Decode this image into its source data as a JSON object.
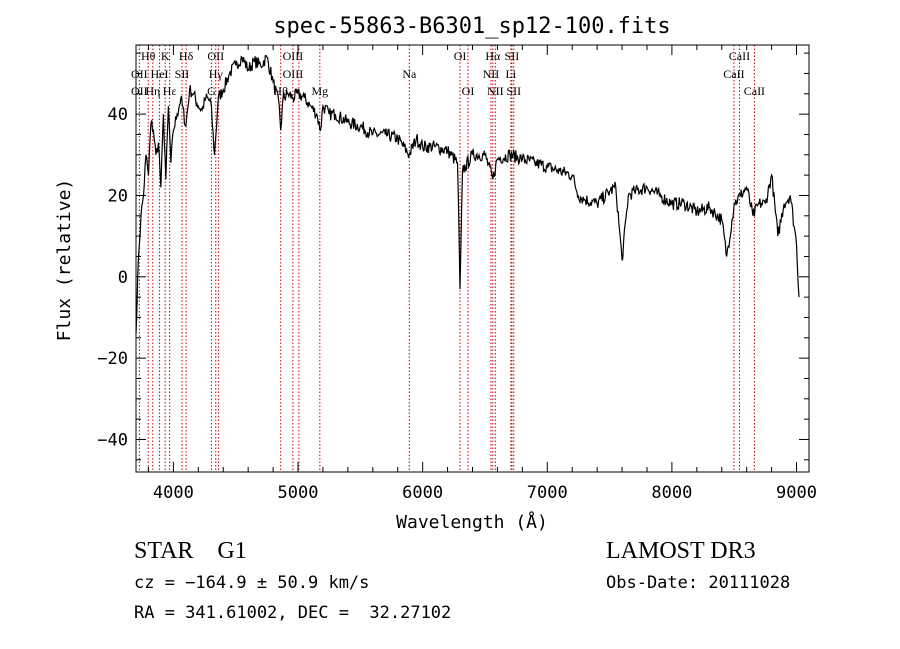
{
  "chart_data": {
    "type": "line",
    "title": "spec-55863-B6301_sp12-100.fits",
    "xlabel": "Wavelength (Å)",
    "ylabel": "Flux (relative)",
    "xlim": [
      3700,
      9100
    ],
    "ylim": [
      -48,
      57
    ],
    "x_ticks": [
      4000,
      5000,
      6000,
      7000,
      8000,
      9000
    ],
    "y_ticks": [
      -40,
      -20,
      0,
      20,
      40
    ],
    "series": [
      {
        "x": [
          3700,
          3720,
          3740,
          3760,
          3780,
          3800,
          3820,
          3840,
          3860,
          3880,
          3900,
          3920,
          3940,
          3960,
          3980,
          4000,
          4030,
          4060,
          4100,
          4130,
          4160,
          4200,
          4230,
          4260,
          4300,
          4330,
          4360,
          4400,
          4450,
          4500,
          4550,
          4600,
          4650,
          4700,
          4750,
          4800,
          4850,
          4861,
          4880,
          4920,
          4960,
          5000,
          5050,
          5100,
          5150,
          5180,
          5200,
          5250,
          5300,
          5400,
          5500,
          5600,
          5700,
          5800,
          5893,
          5950,
          6000,
          6100,
          6200,
          6280,
          6300,
          6320,
          6400,
          6500,
          6563,
          6600,
          6700,
          6800,
          6900,
          7000,
          7100,
          7200,
          7250,
          7300,
          7400,
          7500,
          7550,
          7600,
          7650,
          7700,
          7800,
          7900,
          8000,
          8100,
          8200,
          8300,
          8400,
          8440,
          8500,
          8550,
          8600,
          8650,
          8700,
          8750,
          8800,
          8850,
          8900,
          8950,
          9000,
          9020
        ],
        "y": [
          -14,
          5,
          15,
          20,
          30,
          25,
          38,
          36,
          30,
          33,
          22,
          40,
          24,
          42,
          28,
          36,
          40,
          44,
          37,
          46,
          45,
          42,
          41,
          44,
          43,
          30,
          44,
          46,
          50,
          52,
          54,
          51,
          53,
          52,
          54,
          48,
          42,
          36,
          44,
          45,
          44,
          45,
          44,
          42,
          40,
          36,
          42,
          40,
          40,
          38,
          37,
          35,
          35,
          34,
          30,
          34,
          32,
          32,
          31,
          28,
          -3,
          26,
          30,
          30,
          24,
          29,
          30,
          29,
          28,
          27,
          26,
          25,
          20,
          19,
          18,
          21,
          22,
          4,
          20,
          21,
          22,
          20,
          18,
          18,
          16,
          17,
          14,
          5,
          18,
          20,
          22,
          15,
          18,
          18,
          25,
          10,
          18,
          20,
          8,
          -5
        ]
      }
    ],
    "line_labels": [
      {
        "text": "Hθ",
        "x": 3798,
        "row": 0
      },
      {
        "text": "K",
        "x": 3934,
        "row": 0
      },
      {
        "text": "Hδ",
        "x": 4102,
        "row": 0
      },
      {
        "text": "OII",
        "x": 4340,
        "row": 0
      },
      {
        "text": "OIII",
        "x": 4959,
        "row": 0
      },
      {
        "text": "OI",
        "x": 6300,
        "row": 0
      },
      {
        "text": "Hα",
        "x": 6563,
        "row": 0
      },
      {
        "text": "SII",
        "x": 6716,
        "row": 0
      },
      {
        "text": "CaII",
        "x": 8542,
        "row": 0
      },
      {
        "text": "OII",
        "x": 3727,
        "row": 1
      },
      {
        "text": "HeI",
        "x": 3889,
        "row": 1
      },
      {
        "text": "SII",
        "x": 4069,
        "row": 1
      },
      {
        "text": "Hγ",
        "x": 4340,
        "row": 1
      },
      {
        "text": "OIII",
        "x": 4959,
        "row": 1
      },
      {
        "text": "Na",
        "x": 5893,
        "row": 1
      },
      {
        "text": "NII",
        "x": 6548,
        "row": 1
      },
      {
        "text": "Li",
        "x": 6708,
        "row": 1
      },
      {
        "text": "CaII",
        "x": 8498,
        "row": 1
      },
      {
        "text": "OII",
        "x": 3727,
        "row": 2
      },
      {
        "text": "Hη",
        "x": 3835,
        "row": 2
      },
      {
        "text": "Hε",
        "x": 3970,
        "row": 2
      },
      {
        "text": "G",
        "x": 4305,
        "row": 2
      },
      {
        "text": "Hβ",
        "x": 4861,
        "row": 2
      },
      {
        "text": "Mg",
        "x": 5175,
        "row": 2
      },
      {
        "text": "OI",
        "x": 6364,
        "row": 2
      },
      {
        "text": "NII",
        "x": 6583,
        "row": 2
      },
      {
        "text": "SII",
        "x": 6731,
        "row": 2
      },
      {
        "text": "CaII",
        "x": 8662,
        "row": 2
      }
    ],
    "marker_lines": [
      3727,
      3798,
      3835,
      3889,
      3934,
      3970,
      4069,
      4102,
      4305,
      4340,
      4363,
      4861,
      4959,
      5007,
      5175,
      5893,
      6300,
      6364,
      6548,
      6563,
      6583,
      6708,
      6716,
      6731,
      8498,
      8542,
      8662
    ],
    "marker_color": "#cc0000",
    "line_color": "#000000"
  },
  "info": {
    "object": "STAR    G1",
    "survey": "LAMOST DR3",
    "cz": "cz = −164.9 ± 50.9 km/s",
    "obs_date": "Obs-Date: 20111028",
    "radec": "RA = 341.61002, DEC =  32.27102"
  }
}
